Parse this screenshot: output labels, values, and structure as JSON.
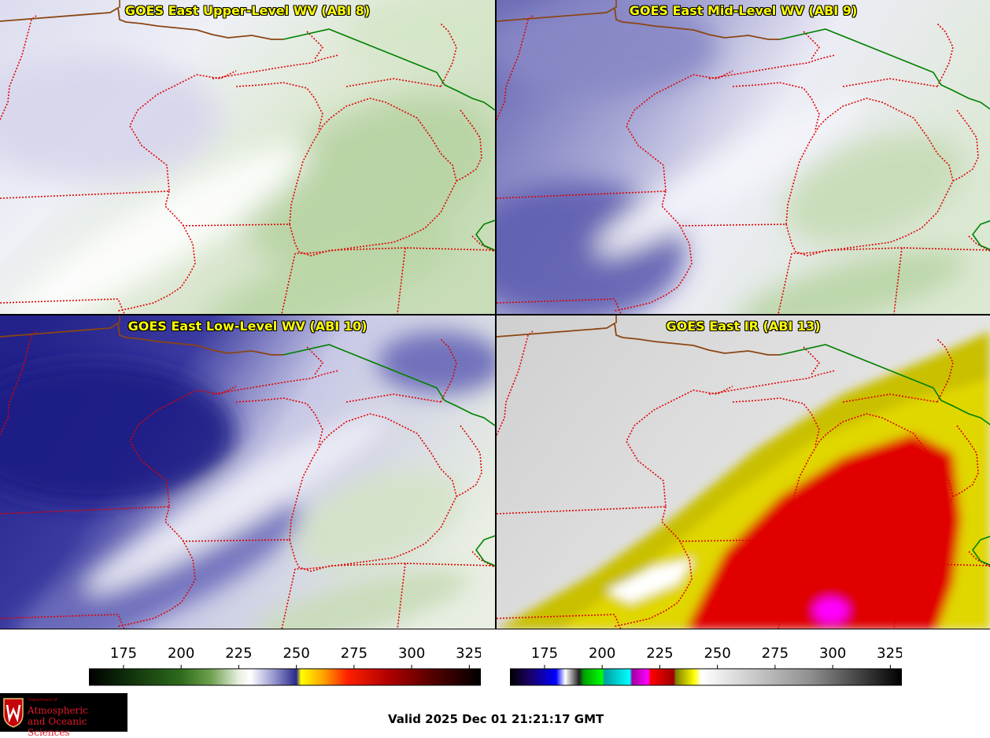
{
  "panels": [
    {
      "title": "GOES East Upper-Level WV (ABI 8)"
    },
    {
      "title": "GOES East Mid-Level WV (ABI 9)"
    },
    {
      "title": "GOES East Low-Level WV (ABI 10)"
    },
    {
      "title": "GOES East IR (ABI 13)"
    }
  ],
  "colorbars": {
    "wv": {
      "ticks": [
        "175",
        "200",
        "225",
        "250",
        "275",
        "300",
        "325"
      ],
      "tick_values": [
        175,
        200,
        225,
        250,
        275,
        300,
        325
      ],
      "range": [
        160,
        330
      ],
      "stops": [
        {
          "v": 160,
          "c": "#000000"
        },
        {
          "v": 175,
          "c": "#0d2a0a"
        },
        {
          "v": 200,
          "c": "#2e6b1c"
        },
        {
          "v": 213,
          "c": "#6fa04f"
        },
        {
          "v": 225,
          "c": "#e8f0e0"
        },
        {
          "v": 230,
          "c": "#ffffff"
        },
        {
          "v": 240,
          "c": "#9a9ad0"
        },
        {
          "v": 250,
          "c": "#2a2a8c"
        },
        {
          "v": 252,
          "c": "#ffff00"
        },
        {
          "v": 262,
          "c": "#ffa000"
        },
        {
          "v": 272,
          "c": "#ff2000"
        },
        {
          "v": 290,
          "c": "#b00000"
        },
        {
          "v": 310,
          "c": "#500000"
        },
        {
          "v": 330,
          "c": "#000000"
        }
      ]
    },
    "ir": {
      "ticks": [
        "175",
        "200",
        "225",
        "250",
        "275",
        "300",
        "325"
      ],
      "tick_values": [
        175,
        200,
        225,
        250,
        275,
        300,
        325
      ],
      "range": [
        160,
        330
      ],
      "stops": [
        {
          "v": 160,
          "c": "#000000"
        },
        {
          "v": 168,
          "c": "#1a0060"
        },
        {
          "v": 180,
          "c": "#0000ff"
        },
        {
          "v": 184,
          "c": "#ffffff"
        },
        {
          "v": 190,
          "c": "#202020"
        },
        {
          "v": 192,
          "c": "#00a000"
        },
        {
          "v": 200,
          "c": "#00ff00"
        },
        {
          "v": 201,
          "c": "#00a0a0"
        },
        {
          "v": 212,
          "c": "#00ffff"
        },
        {
          "v": 213,
          "c": "#a000a0"
        },
        {
          "v": 220,
          "c": "#ff00ff"
        },
        {
          "v": 221,
          "c": "#ff0000"
        },
        {
          "v": 231,
          "c": "#a00000"
        },
        {
          "v": 232,
          "c": "#808000"
        },
        {
          "v": 240,
          "c": "#ffff00"
        },
        {
          "v": 243,
          "c": "#ffffff"
        },
        {
          "v": 290,
          "c": "#909090"
        },
        {
          "v": 330,
          "c": "#000000"
        }
      ]
    }
  },
  "valid_time": "Valid 2025 Dec 01 21:21:17 GMT",
  "logo": {
    "dept": "Department of",
    "line1": "Atmospheric",
    "line2": "and Oceanic Sciences"
  },
  "colors": {
    "state_border": "#e00000",
    "country_border": "#008000",
    "coast": "#8b4513",
    "title_text": "#ffff00"
  }
}
